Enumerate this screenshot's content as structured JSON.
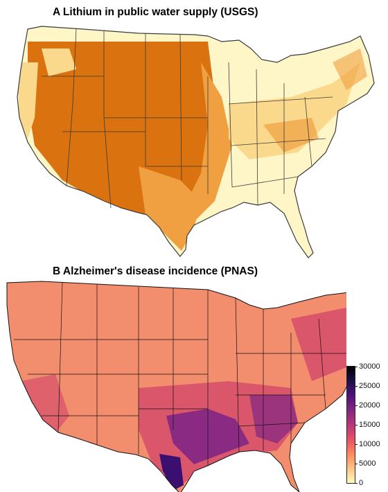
{
  "panel_a": {
    "title": "A Lithium in public water supply (USGS)",
    "colors": {
      "high": "#d9720f",
      "medium": "#f0a040",
      "low": "#fbd98c",
      "very_low": "#fff6c8",
      "border": "#3a3a3a"
    }
  },
  "panel_b": {
    "title": "B Alzheimer's disease incidence (PNAS)",
    "colors": {
      "base": "#f28d6e",
      "mid": "#d9566b",
      "high": "#8b2a82",
      "very_high": "#3b0f6f",
      "border": "#111111"
    },
    "colorbar": {
      "ticks": [
        "30000",
        "25000",
        "20000",
        "15000",
        "10000",
        "5000",
        "0"
      ],
      "min": 0,
      "max": 30000,
      "palette": [
        "#fcfdbf",
        "#fec387",
        "#fc8961",
        "#e65164",
        "#b73779",
        "#822681",
        "#51127c",
        "#1d1147",
        "#000004"
      ]
    }
  }
}
